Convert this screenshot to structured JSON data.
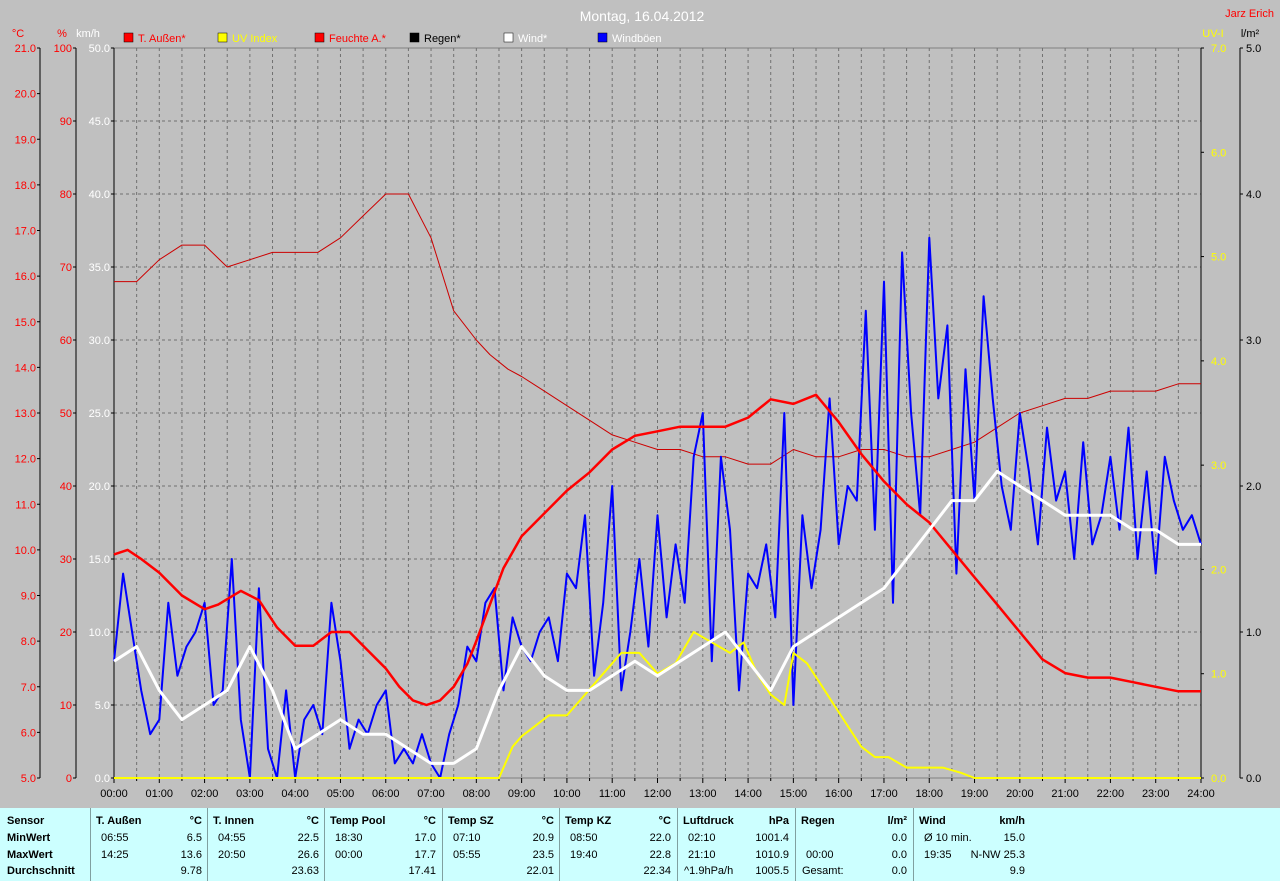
{
  "title": "Montag, 16.04.2012",
  "author": "Jarz Erich",
  "colors": {
    "background": "#c0c0c0",
    "temp": "#ff0000",
    "humidity": "#cc0000",
    "uv": "#ffff00",
    "wind": "#ffffff",
    "gusts": "#0000ff",
    "rain": "#000000",
    "stats_bg": "#ccffff"
  },
  "chart_data": {
    "type": "line",
    "title": "Montag, 16.04.2012",
    "x_ticks": [
      "00:00",
      "01:00",
      "02:00",
      "03:00",
      "04:00",
      "05:00",
      "06:00",
      "07:00",
      "08:00",
      "09:00",
      "10:00",
      "11:00",
      "12:00",
      "13:00",
      "14:00",
      "15:00",
      "16:00",
      "17:00",
      "18:00",
      "19:00",
      "20:00",
      "21:00",
      "22:00",
      "23:00",
      "24:00"
    ],
    "grid": true,
    "legend_position": "top",
    "axes": {
      "temp": {
        "unit_label": "°C",
        "range": [
          5.0,
          21.0
        ],
        "ticks": [
          "21.0",
          "20.0",
          "19.0",
          "18.0",
          "17.0",
          "16.0",
          "15.0",
          "14.0",
          "13.0",
          "12.0",
          "11.0",
          "10.0",
          "9.0",
          "8.0",
          "7.0",
          "6.0",
          "5.0"
        ]
      },
      "humidity": {
        "unit_label": "%",
        "range": [
          0,
          100
        ],
        "ticks": [
          "100",
          "90",
          "80",
          "70",
          "60",
          "50",
          "40",
          "30",
          "20",
          "10",
          "0"
        ]
      },
      "wind": {
        "unit_label": "km/h",
        "range": [
          0,
          50
        ],
        "ticks": [
          "50.0",
          "45.0",
          "40.0",
          "35.0",
          "30.0",
          "25.0",
          "20.0",
          "15.0",
          "10.0",
          "5.0",
          "0.0"
        ]
      },
      "uv": {
        "unit_label": "UV-I",
        "range": [
          0,
          7
        ],
        "ticks": [
          "7.0",
          "6.0",
          "5.0",
          "4.0",
          "3.0",
          "2.0",
          "1.0",
          "0.0"
        ]
      },
      "rain": {
        "unit_label": "l/m²",
        "range": [
          0,
          5
        ],
        "ticks": [
          "5.0",
          "4.0",
          "3.0",
          "2.0",
          "1.0",
          "0.0"
        ]
      }
    },
    "series": [
      {
        "name": "T. Außen*",
        "axis": "temp",
        "color": "#ff0000",
        "x": [
          0,
          0.3,
          0.6,
          1,
          1.5,
          2,
          2.3,
          2.8,
          3.2,
          3.6,
          4,
          4.4,
          4.8,
          5.2,
          5.6,
          6,
          6.3,
          6.6,
          6.9,
          7.2,
          7.5,
          7.8,
          8,
          8.3,
          8.6,
          9,
          9.5,
          10,
          10.5,
          11,
          11.5,
          12,
          12.5,
          13,
          13.5,
          14,
          14.5,
          15,
          15.5,
          16,
          16.5,
          17,
          17.5,
          18,
          18.5,
          19,
          19.5,
          20,
          20.5,
          21,
          21.5,
          22,
          22.5,
          23,
          23.5,
          24
        ],
        "y": [
          9.9,
          10.0,
          9.8,
          9.5,
          9.0,
          8.7,
          8.8,
          9.1,
          8.9,
          8.3,
          7.9,
          7.9,
          8.2,
          8.2,
          7.8,
          7.4,
          7.0,
          6.7,
          6.6,
          6.7,
          7.0,
          7.5,
          8.0,
          8.8,
          9.6,
          10.3,
          10.8,
          11.3,
          11.7,
          12.2,
          12.5,
          12.6,
          12.7,
          12.7,
          12.7,
          12.9,
          13.3,
          13.2,
          13.4,
          12.8,
          12.1,
          11.5,
          11.0,
          10.6,
          10.0,
          9.4,
          8.8,
          8.2,
          7.6,
          7.3,
          7.2,
          7.2,
          7.1,
          7.0,
          6.9,
          6.9
        ]
      },
      {
        "name": "Feuchte A.*",
        "axis": "humidity",
        "color": "#cc0000",
        "x": [
          0,
          0.5,
          1,
          1.5,
          2,
          2.5,
          3,
          3.5,
          4,
          4.5,
          5,
          5.5,
          6,
          6.5,
          7,
          7.5,
          8,
          8.3,
          8.7,
          9,
          9.5,
          10,
          10.5,
          11,
          11.5,
          12,
          12.5,
          13,
          13.5,
          14,
          14.5,
          15,
          15.5,
          16,
          16.5,
          17,
          17.5,
          18,
          18.5,
          19,
          19.5,
          20,
          20.5,
          21,
          21.5,
          22,
          22.5,
          23,
          23.5,
          24
        ],
        "y": [
          68,
          68,
          71,
          73,
          73,
          70,
          71,
          72,
          72,
          72,
          74,
          77,
          80,
          80,
          74,
          64,
          60,
          58,
          56,
          55,
          53,
          51,
          49,
          47,
          46,
          45,
          45,
          44,
          44,
          43,
          43,
          45,
          44,
          44,
          45,
          45,
          44,
          44,
          45,
          46,
          48,
          50,
          51,
          52,
          52,
          53,
          53,
          53,
          54,
          54
        ]
      },
      {
        "name": "UV Index",
        "axis": "uv",
        "color": "#ffff00",
        "x": [
          0,
          8.5,
          8.8,
          9,
          9.3,
          9.6,
          10,
          10.4,
          10.8,
          11.2,
          11.6,
          12,
          12.4,
          12.8,
          13.2,
          13.6,
          13.9,
          14.2,
          14.5,
          14.8,
          15,
          15.3,
          15.6,
          15.9,
          16.2,
          16.5,
          16.8,
          17.1,
          17.5,
          17.9,
          18.3,
          18.7,
          19,
          24
        ],
        "y": [
          0,
          0,
          0.3,
          0.4,
          0.5,
          0.6,
          0.6,
          0.8,
          1.0,
          1.2,
          1.2,
          1.0,
          1.1,
          1.4,
          1.3,
          1.2,
          1.3,
          1.0,
          0.8,
          0.7,
          1.2,
          1.1,
          0.9,
          0.7,
          0.5,
          0.3,
          0.2,
          0.2,
          0.1,
          0.1,
          0.1,
          0.05,
          0,
          0
        ]
      },
      {
        "name": "Wind*",
        "axis": "wind",
        "color": "#ffffff",
        "x": [
          0,
          0.5,
          1,
          1.5,
          2,
          2.5,
          3,
          3.5,
          4,
          4.5,
          5,
          5.5,
          6,
          6.5,
          7,
          7.5,
          8,
          8.5,
          9,
          9.5,
          10,
          10.5,
          11,
          11.5,
          12,
          12.5,
          13,
          13.5,
          14,
          14.5,
          15,
          15.5,
          16,
          16.5,
          17,
          17.5,
          18,
          18.5,
          19,
          19.5,
          20,
          20.5,
          21,
          21.5,
          22,
          22.5,
          23,
          23.5,
          24
        ],
        "y": [
          8,
          9,
          6,
          4,
          5,
          6,
          9,
          6,
          2,
          3,
          4,
          3,
          3,
          2,
          1,
          1,
          2,
          6,
          9,
          7,
          6,
          6,
          7,
          8,
          7,
          8,
          9,
          10,
          8,
          6,
          9,
          10,
          11,
          12,
          13,
          15,
          17,
          19,
          19,
          21,
          20,
          19,
          18,
          18,
          18,
          17,
          17,
          16,
          16
        ]
      },
      {
        "name": "Windböen",
        "axis": "wind",
        "color": "#0000ff",
        "x": [
          0,
          0.2,
          0.4,
          0.6,
          0.8,
          1,
          1.2,
          1.4,
          1.6,
          1.8,
          2,
          2.2,
          2.4,
          2.6,
          2.8,
          3,
          3.2,
          3.4,
          3.6,
          3.8,
          4,
          4.2,
          4.4,
          4.6,
          4.8,
          5,
          5.2,
          5.4,
          5.6,
          5.8,
          6,
          6.2,
          6.4,
          6.6,
          6.8,
          7,
          7.2,
          7.4,
          7.6,
          7.8,
          8,
          8.2,
          8.4,
          8.6,
          8.8,
          9,
          9.2,
          9.4,
          9.6,
          9.8,
          10,
          10.2,
          10.4,
          10.6,
          10.8,
          11,
          11.2,
          11.4,
          11.6,
          11.8,
          12,
          12.2,
          12.4,
          12.6,
          12.8,
          13,
          13.2,
          13.4,
          13.6,
          13.8,
          14,
          14.2,
          14.4,
          14.6,
          14.8,
          15,
          15.2,
          15.4,
          15.6,
          15.8,
          16,
          16.2,
          16.4,
          16.6,
          16.8,
          17,
          17.2,
          17.4,
          17.6,
          17.8,
          18,
          18.2,
          18.4,
          18.6,
          18.8,
          19,
          19.2,
          19.4,
          19.6,
          19.8,
          20,
          20.2,
          20.4,
          20.6,
          20.8,
          21,
          21.2,
          21.4,
          21.6,
          21.8,
          22,
          22.2,
          22.4,
          22.6,
          22.8,
          23,
          23.2,
          23.4,
          23.6,
          23.8,
          24
        ],
        "y": [
          8,
          14,
          10,
          6,
          3,
          4,
          12,
          7,
          9,
          10,
          12,
          5,
          6,
          15,
          4,
          0,
          13,
          2,
          0,
          6,
          0,
          4,
          5,
          3,
          12,
          8,
          2,
          4,
          3,
          5,
          6,
          1,
          2,
          1,
          3,
          1,
          0,
          3,
          5,
          9,
          8,
          12,
          13,
          6,
          11,
          9,
          8,
          10,
          11,
          8,
          14,
          13,
          18,
          7,
          12,
          20,
          6,
          10,
          15,
          9,
          18,
          11,
          16,
          12,
          22,
          25,
          8,
          22,
          17,
          6,
          14,
          13,
          16,
          11,
          25,
          5,
          18,
          13,
          17,
          26,
          16,
          20,
          19,
          32,
          17,
          34,
          12,
          36,
          25,
          18,
          37,
          26,
          31,
          14,
          28,
          19,
          33,
          26,
          20,
          17,
          25,
          21,
          16,
          24,
          19,
          21,
          15,
          23,
          16,
          18,
          22,
          17,
          24,
          15,
          21,
          14,
          22,
          19,
          17,
          18,
          16
        ]
      }
    ]
  },
  "legend": [
    {
      "label": "T. Außen*",
      "color": "#ff0000",
      "text_color": "#ff0000"
    },
    {
      "label": "UV Index",
      "color": "#ffff00",
      "text_color": "#ffff00"
    },
    {
      "label": "Feuchte A.*",
      "color": "#ff0000",
      "text_color": "#ff0000"
    },
    {
      "label": "Regen*",
      "color": "#000000",
      "text_color": "#000000"
    },
    {
      "label": "Wind*",
      "color": "#ffffff",
      "text_color": "#ffffff"
    },
    {
      "label": "Windböen",
      "color": "#0000ff",
      "text_color": "#ffffff"
    }
  ],
  "stats": {
    "row_labels": [
      "Sensor",
      "MinWert",
      "MaxWert",
      "Durchschnitt"
    ],
    "blocks": [
      {
        "name": "T. Außen",
        "unit": "°C",
        "min_time": "06:55",
        "min": "6.5",
        "max_time": "14:25",
        "max": "13.6",
        "avg_label": "",
        "avg": "9.78"
      },
      {
        "name": "T. Innen",
        "unit": "°C",
        "min_time": "04:55",
        "min": "22.5",
        "max_time": "20:50",
        "max": "26.6",
        "avg_label": "",
        "avg": "23.63"
      },
      {
        "name": "Temp Pool",
        "unit": "°C",
        "min_time": "18:30",
        "min": "17.0",
        "max_time": "00:00",
        "max": "17.7",
        "avg_label": "",
        "avg": "17.41"
      },
      {
        "name": "Temp SZ",
        "unit": "°C",
        "min_time": "07:10",
        "min": "20.9",
        "max_time": "05:55",
        "max": "23.5",
        "avg_label": "",
        "avg": "22.01"
      },
      {
        "name": "Temp KZ",
        "unit": "°C",
        "min_time": "08:50",
        "min": "22.0",
        "max_time": "19:40",
        "max": "22.8",
        "avg_label": "",
        "avg": "22.34"
      },
      {
        "name": "Luftdruck",
        "unit": "hPa",
        "min_time": "02:10",
        "min": "1001.4",
        "max_time": "21:10",
        "max": "1010.9",
        "avg_label": "^1.9hPa/h",
        "avg": "1005.5"
      },
      {
        "name": "Regen",
        "unit": "l/m²",
        "min_time": "",
        "min": "0.0",
        "max_time": "00:00",
        "max": "0.0",
        "avg_label": "Gesamt:",
        "avg": "0.0"
      },
      {
        "name": "Wind",
        "unit": "km/h",
        "min_time": "Ø 10 min.",
        "min": "15.0",
        "max_time": "19:35",
        "max": "N-NW 25.3",
        "avg_label": "",
        "avg": "9.9"
      }
    ]
  }
}
